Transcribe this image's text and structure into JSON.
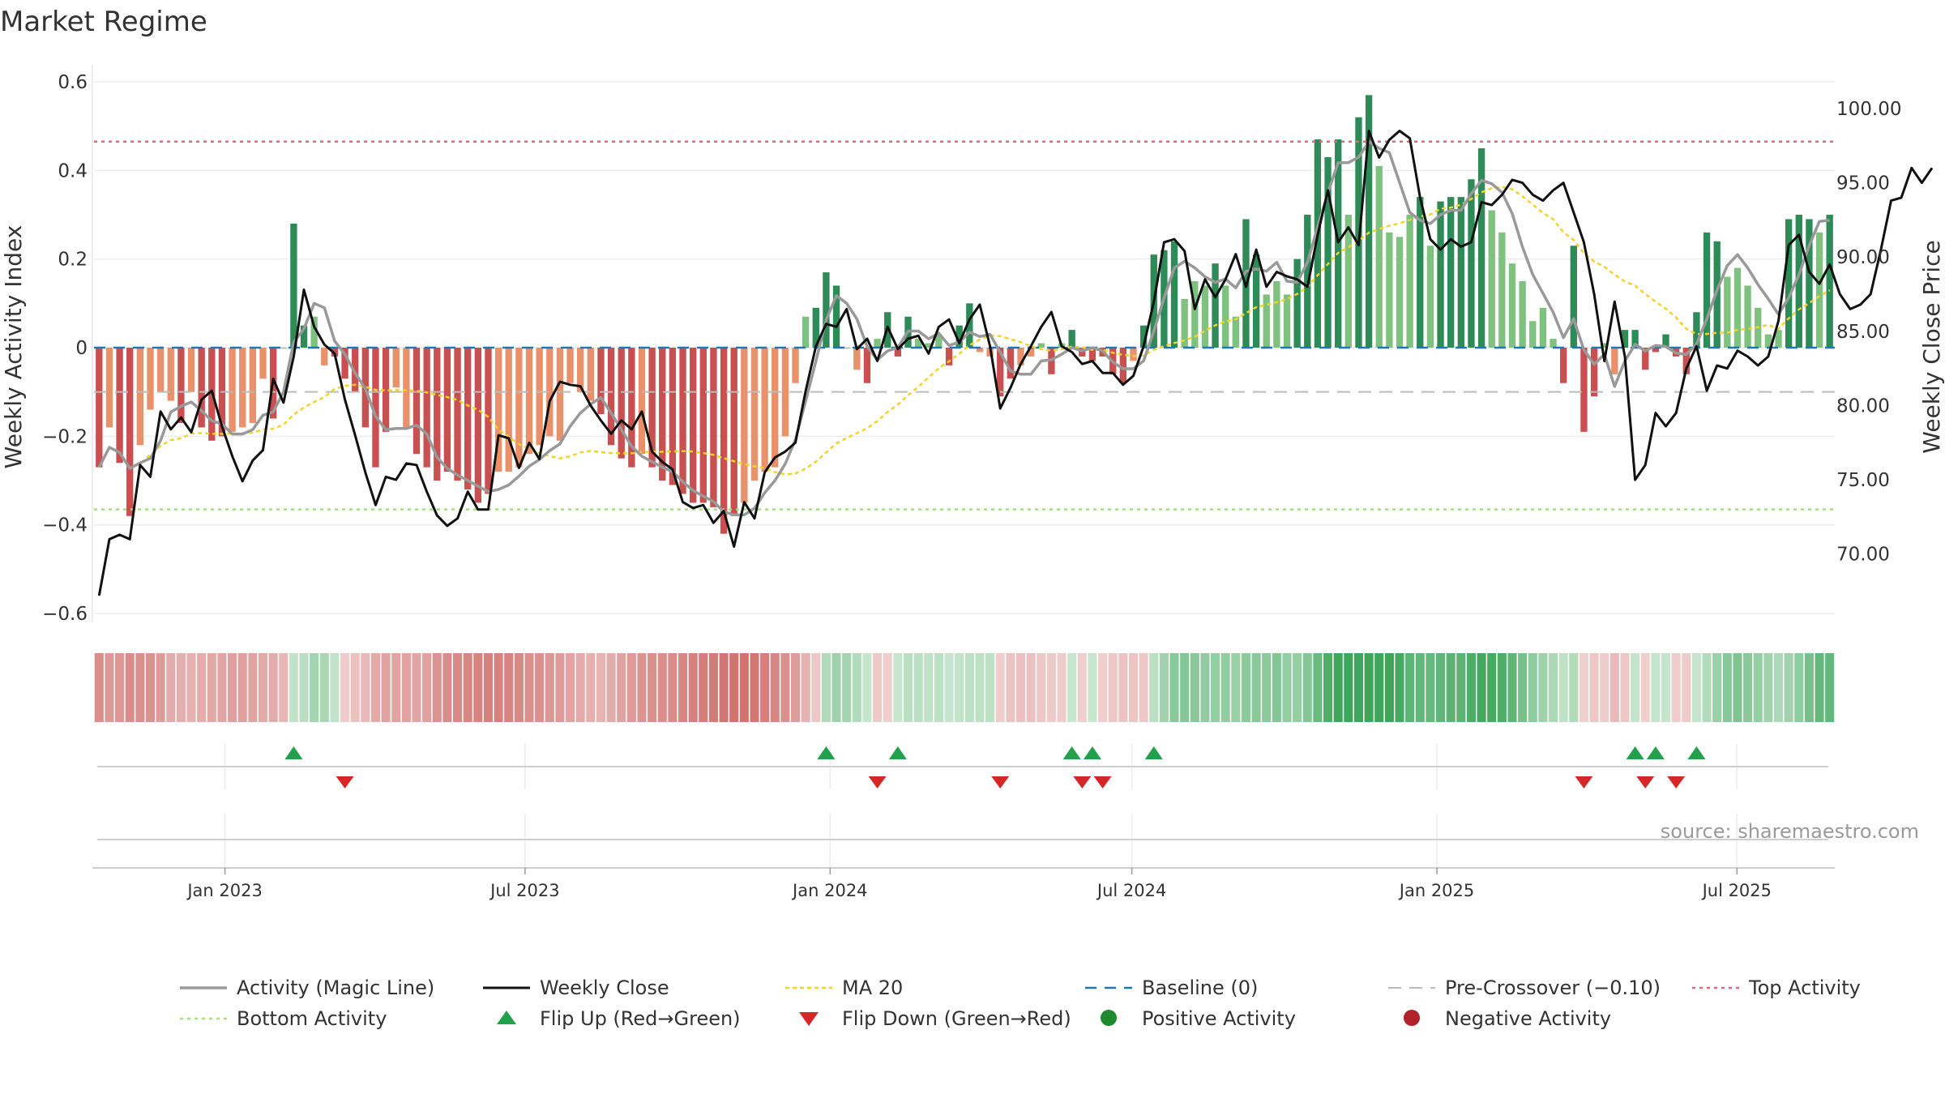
{
  "chart_data": {
    "type": "bar",
    "title": "Market Regime",
    "ylabel": "Weekly Activity Index",
    "y2label": "Weekly Close Price",
    "source": "source: sharemaestro.com",
    "ylim": [
      -0.62,
      0.62
    ],
    "y2lim": [
      65.4,
      102.4
    ],
    "yticks": [
      {
        "v": 0.6,
        "label": "0.6"
      },
      {
        "v": 0.4,
        "label": "0.4"
      },
      {
        "v": 0.2,
        "label": "0.2"
      },
      {
        "v": 0,
        "label": "0"
      },
      {
        "v": -0.2,
        "label": "−0.2"
      },
      {
        "v": -0.4,
        "label": "−0.4"
      },
      {
        "v": -0.6,
        "label": "−0.6"
      }
    ],
    "y2ticks": [
      {
        "v": 100,
        "label": "100.00"
      },
      {
        "v": 95,
        "label": "95.00"
      },
      {
        "v": 90,
        "label": "90.00"
      },
      {
        "v": 85,
        "label": "85.00"
      },
      {
        "v": 80,
        "label": "80.00"
      },
      {
        "v": 75,
        "label": "75.00"
      },
      {
        "v": 70,
        "label": "70.00"
      }
    ],
    "x_start": "2022-10-14",
    "x_end": "2025-08-29",
    "xticks": [
      {
        "date": "2023-01-01",
        "label": "Jan 2023"
      },
      {
        "date": "2023-07-01",
        "label": "Jul 2023"
      },
      {
        "date": "2024-01-01",
        "label": "Jan 2024"
      },
      {
        "date": "2024-07-01",
        "label": "Jul 2024"
      },
      {
        "date": "2025-01-01",
        "label": "Jan 2025"
      },
      {
        "date": "2025-07-01",
        "label": "Jul 2025"
      }
    ],
    "reference_lines": {
      "baseline": 0,
      "pre_crossover": -0.1,
      "top_activity": 0.465,
      "bottom_activity": -0.365
    },
    "activity": [
      -0.27,
      -0.18,
      -0.26,
      -0.38,
      -0.22,
      -0.14,
      -0.1,
      -0.12,
      -0.17,
      -0.1,
      -0.18,
      -0.21,
      -0.2,
      -0.19,
      -0.18,
      -0.17,
      -0.07,
      -0.16,
      0,
      0.28,
      0.05,
      0.07,
      -0.04,
      -0.02,
      -0.07,
      -0.1,
      -0.18,
      -0.27,
      -0.19,
      -0.09,
      -0.18,
      -0.24,
      -0.27,
      -0.3,
      -0.28,
      -0.3,
      -0.32,
      -0.35,
      -0.33,
      -0.28,
      -0.28,
      -0.27,
      -0.24,
      -0.22,
      -0.2,
      -0.21,
      -0.08,
      -0.1,
      -0.12,
      -0.15,
      -0.22,
      -0.25,
      -0.27,
      -0.24,
      -0.27,
      -0.3,
      -0.31,
      -0.33,
      -0.35,
      -0.35,
      -0.36,
      -0.42,
      -0.38,
      -0.35,
      -0.3,
      -0.28,
      -0.27,
      -0.2,
      -0.08,
      0.07,
      0.09,
      0.17,
      0.14,
      0,
      -0.05,
      -0.08,
      0.02,
      0.08,
      -0.02,
      0.07,
      0.02,
      0.01,
      0.03,
      -0.04,
      0.05,
      0.1,
      -0.01,
      -0.02,
      -0.11,
      -0.07,
      -0.04,
      -0.02,
      0.01,
      -0.06,
      0.01,
      0.04,
      -0.02,
      -0.03,
      -0.02,
      -0.06,
      -0.08,
      -0.03,
      0.05,
      0.21,
      0.22,
      0.24,
      0.11,
      0.15,
      0.14,
      0.19,
      0.14,
      0.07,
      0.29,
      0.21,
      0.12,
      0.15,
      0.12,
      0.2,
      0.3,
      0.47,
      0.43,
      0.47,
      0.3,
      0.52,
      0.57,
      0.41,
      0.26,
      0.25,
      0.3,
      0.34,
      0.23,
      0.33,
      0.34,
      0.34,
      0.38,
      0.45,
      0.31,
      0.26,
      0.19,
      0.15,
      0.06,
      0.09,
      0.02,
      -0.08,
      0.23,
      -0.19,
      -0.11,
      0.01,
      -0.06,
      0.04,
      0.04,
      -0.05,
      -0.01,
      0.03,
      -0.02,
      -0.06,
      0.08,
      0.26,
      0.24,
      0.16,
      0.18,
      0.14,
      0.09,
      0.03,
      0.04,
      0.29,
      0.3,
      0.29,
      0.26,
      0.3
    ],
    "weekly_close": [
      67.2,
      71.0,
      71.3,
      71.0,
      76.0,
      75.2,
      79.6,
      78.4,
      79.2,
      78.2,
      80.4,
      81.0,
      78.6,
      76.6,
      74.9,
      76.3,
      77.0,
      81.8,
      80.2,
      83.3,
      87.8,
      85.3,
      84.1,
      83.5,
      80.4,
      78.0,
      75.5,
      73.3,
      75.2,
      75.0,
      76.1,
      76.0,
      74.2,
      72.6,
      71.9,
      72.4,
      74.2,
      73.0,
      73.0,
      78.0,
      77.8,
      75.8,
      77.5,
      76.4,
      80.3,
      81.6,
      81.4,
      81.3,
      80.0,
      79.0,
      78.1,
      79.0,
      78.4,
      79.6,
      76.9,
      76.2,
      75.7,
      73.5,
      73.1,
      73.3,
      72.1,
      72.9,
      70.5,
      73.5,
      72.4,
      75.5,
      76.5,
      76.9,
      77.5,
      81.0,
      84.0,
      85.5,
      85.3,
      86.5,
      83.8,
      84.5,
      83.0,
      85.3,
      83.8,
      84.5,
      84.7,
      83.5,
      85.3,
      85.8,
      84.2,
      85.8,
      86.8,
      84.0,
      79.8,
      81.2,
      82.8,
      84.0,
      85.3,
      86.3,
      84.0,
      83.6,
      82.8,
      83.0,
      82.2,
      82.2,
      81.4,
      82.0,
      84.0,
      87.0,
      91.0,
      91.2,
      90.4,
      86.5,
      88.5,
      87.3,
      88.5,
      90.2,
      88.0,
      90.5,
      88.0,
      89.0,
      88.7,
      88.5,
      88.0,
      91.5,
      94.5,
      91.0,
      92.0,
      90.8,
      98.5,
      96.7,
      97.9,
      98.5,
      98.0,
      94.0,
      91.2,
      90.5,
      91.2,
      90.7,
      91.0,
      93.7,
      93.5,
      94.2,
      95.2,
      95.0,
      94.2,
      93.8,
      94.5,
      95.0,
      93.0,
      91.0,
      87.5,
      83.0,
      87.0,
      83.3,
      75.0,
      76.0,
      79.5,
      78.6,
      79.5,
      82.5,
      84.0,
      81.0,
      82.7,
      82.5,
      83.7,
      83.3,
      82.7,
      83.3,
      85.7,
      90.8,
      91.5,
      89.0,
      88.2,
      89.5,
      87.5,
      86.5,
      86.8,
      87.5,
      90.5,
      93.8,
      94.0,
      96.0,
      95.0,
      96.0
    ]
  },
  "legend": [
    {
      "key": "magic",
      "label": "Activity (Magic Line)"
    },
    {
      "key": "close",
      "label": "Weekly Close"
    },
    {
      "key": "ma20",
      "label": "MA 20"
    },
    {
      "key": "baseline",
      "label": "Baseline (0)"
    },
    {
      "key": "precross",
      "label": "Pre-Crossover (−0.10)"
    },
    {
      "key": "top",
      "label": "Top Activity"
    },
    {
      "key": "bottom",
      "label": "Bottom Activity"
    },
    {
      "key": "flipup",
      "label": "Flip Up (Red→Green)"
    },
    {
      "key": "flipdown",
      "label": "Flip Down (Green→Red)"
    },
    {
      "key": "pos",
      "label": "Positive Activity"
    },
    {
      "key": "neg",
      "label": "Negative Activity"
    }
  ],
  "colors": {
    "pos_dark": "#2e8b57",
    "pos_light": "#7fc27f",
    "neg_dark": "#c85050",
    "neg_light": "#e8916a",
    "magic": "#999999",
    "close": "#111111",
    "ma20": "#f2d32b",
    "baseline": "#1f77b4",
    "precross": "#bbbbbb",
    "top": "#dc6a7a",
    "bottom": "#a6e07a",
    "flip_up": "#22a04b",
    "flip_down": "#d62728",
    "positive_marker": "#1e8b2e",
    "negative_marker": "#b2222b"
  }
}
